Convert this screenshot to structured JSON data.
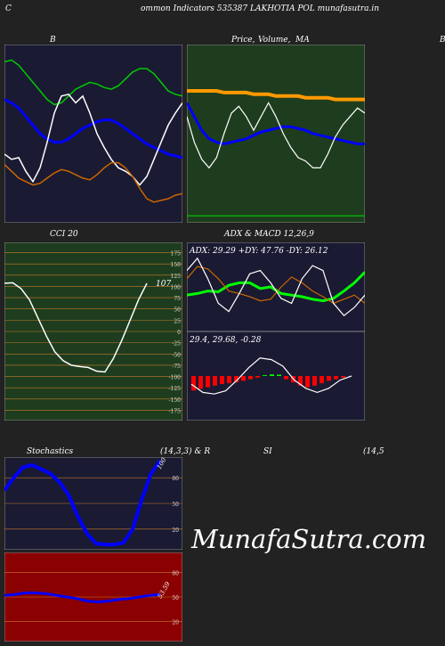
{
  "header": {
    "left_letter": "C",
    "title": "ommon  Indicators 535387 LAKHOTIA POL  munafasutra.in",
    "right_letter": "B"
  },
  "panels": {
    "bb": {
      "title": "B"
    },
    "price": {
      "title_a": "Price,",
      "title_b": "Volume,",
      "title_c": "MA"
    },
    "cci": {
      "title": "CCI 20",
      "ticks": [
        "175",
        "150",
        "125",
        "100",
        "75",
        "50",
        "25",
        "0",
        "-25",
        "-50",
        "-75",
        "-100",
        "-125",
        "-150",
        "-175"
      ],
      "value_label": "107"
    },
    "adx": {
      "title": "ADX  & MACD 12,26,9",
      "readout": "ADX: 29.29  +DY: 47.76  -DY: 26.12"
    },
    "macd": {
      "readout": "29.4,  29.68,  -0.28"
    },
    "stoch": {
      "title_a": "Stochastics",
      "title_b": "(14,3,3) & R",
      "title_c": "SI",
      "title_d": "(14,5",
      "ticks": [
        "80",
        "50",
        "20"
      ],
      "value_label": "100"
    },
    "rsi": {
      "ticks": [
        "80",
        "50",
        "20"
      ],
      "value_label": "53.59"
    }
  },
  "watermark": "MunafaSutra.com",
  "colors": {
    "bg": "#222222",
    "navy": "#1a1a33",
    "green": "#1e3d1e",
    "red": "#8b0000",
    "grid": "#c87a2a"
  },
  "chart_data": [
    {
      "type": "line",
      "name_hint": "B panel",
      "series": [
        {
          "color": "#00cc00",
          "values": [
            0.92,
            0.93,
            0.9,
            0.85,
            0.8,
            0.75,
            0.7,
            0.67,
            0.68,
            0.72,
            0.76,
            0.78,
            0.8,
            0.79,
            0.77,
            0.76,
            0.78,
            0.82,
            0.86,
            0.88,
            0.88,
            0.85,
            0.8,
            0.75,
            0.73,
            0.72
          ]
        },
        {
          "color": "#0000ff",
          "values": [
            0.7,
            0.68,
            0.65,
            0.6,
            0.55,
            0.5,
            0.47,
            0.45,
            0.45,
            0.47,
            0.5,
            0.53,
            0.55,
            0.57,
            0.58,
            0.58,
            0.56,
            0.53,
            0.5,
            0.47,
            0.44,
            0.42,
            0.4,
            0.38,
            0.37,
            0.36
          ]
        },
        {
          "color": "#ffffff",
          "values": [
            0.38,
            0.35,
            0.36,
            0.28,
            0.22,
            0.3,
            0.45,
            0.62,
            0.72,
            0.73,
            0.68,
            0.72,
            0.62,
            0.5,
            0.42,
            0.35,
            0.3,
            0.28,
            0.25,
            0.2,
            0.25,
            0.35,
            0.45,
            0.55,
            0.62,
            0.68
          ]
        },
        {
          "color": "#cc6600",
          "values": [
            0.32,
            0.28,
            0.24,
            0.22,
            0.2,
            0.21,
            0.24,
            0.27,
            0.29,
            0.28,
            0.26,
            0.24,
            0.23,
            0.26,
            0.3,
            0.33,
            0.33,
            0.3,
            0.25,
            0.18,
            0.12,
            0.1,
            0.11,
            0.12,
            0.14,
            0.15
          ]
        }
      ]
    },
    {
      "type": "line",
      "name_hint": "Price panel",
      "series": [
        {
          "color": "#ff9900",
          "values": [
            0.75,
            0.75,
            0.75,
            0.75,
            0.75,
            0.74,
            0.74,
            0.74,
            0.74,
            0.73,
            0.73,
            0.73,
            0.72,
            0.72,
            0.72,
            0.72,
            0.71,
            0.71,
            0.71,
            0.71,
            0.7,
            0.7,
            0.7,
            0.7,
            0.7
          ]
        },
        {
          "color": "#0000ff",
          "values": [
            0.68,
            0.6,
            0.52,
            0.47,
            0.45,
            0.44,
            0.45,
            0.46,
            0.47,
            0.49,
            0.51,
            0.52,
            0.53,
            0.54,
            0.54,
            0.53,
            0.52,
            0.5,
            0.49,
            0.48,
            0.47,
            0.46,
            0.45,
            0.44,
            0.44
          ]
        },
        {
          "color": "#ffffff",
          "values": [
            0.6,
            0.45,
            0.35,
            0.3,
            0.36,
            0.5,
            0.62,
            0.66,
            0.6,
            0.52,
            0.6,
            0.68,
            0.6,
            0.5,
            0.42,
            0.36,
            0.34,
            0.3,
            0.3,
            0.38,
            0.48,
            0.55,
            0.6,
            0.65,
            0.62
          ]
        },
        {
          "color": "#00cc00",
          "values": [
            0.02,
            0.02,
            0.02,
            0.02,
            0.02,
            0.02,
            0.02,
            0.02,
            0.02,
            0.02,
            0.02,
            0.02,
            0.02,
            0.02,
            0.02,
            0.02,
            0.02,
            0.02,
            0.02,
            0.02,
            0.02,
            0.02,
            0.02,
            0.02,
            0.02
          ]
        }
      ]
    },
    {
      "type": "line",
      "name_hint": "CCI 20",
      "ylim": [
        -190,
        190
      ],
      "series": [
        {
          "color": "#ffffff",
          "values": [
            107,
            108,
            95,
            70,
            30,
            -10,
            -45,
            -65,
            -75,
            -78,
            -80,
            -88,
            -90,
            -60,
            -20,
            25,
            70,
            107
          ]
        }
      ]
    },
    {
      "type": "line",
      "name_hint": "ADX",
      "series": [
        {
          "color": "#00ff00",
          "values": [
            0.4,
            0.42,
            0.45,
            0.44,
            0.52,
            0.55,
            0.55,
            0.48,
            0.5,
            0.42,
            0.4,
            0.38,
            0.35,
            0.33,
            0.36,
            0.45,
            0.55,
            0.68
          ]
        },
        {
          "color": "#cc6600",
          "values": [
            0.6,
            0.75,
            0.72,
            0.6,
            0.45,
            0.42,
            0.38,
            0.33,
            0.35,
            0.5,
            0.62,
            0.55,
            0.45,
            0.38,
            0.3,
            0.35,
            0.4,
            0.3
          ]
        },
        {
          "color": "#ffffff",
          "values": [
            0.7,
            0.85,
            0.6,
            0.3,
            0.2,
            0.42,
            0.66,
            0.7,
            0.55,
            0.36,
            0.3,
            0.6,
            0.76,
            0.7,
            0.3,
            0.15,
            0.25,
            0.4
          ]
        }
      ]
    },
    {
      "type": "bar",
      "name_hint": "MACD histogram",
      "values": [
        -0.9,
        -0.8,
        -0.7,
        -0.6,
        -0.5,
        -0.45,
        -0.4,
        -0.3,
        -0.2,
        -0.1,
        0.05,
        0.1,
        0.08,
        -0.2,
        -0.4,
        -0.6,
        -0.7,
        -0.6,
        -0.45,
        -0.3,
        -0.2,
        -0.1
      ]
    },
    {
      "type": "line",
      "name_hint": "Stochastics",
      "ylim": [
        0,
        100
      ],
      "series": [
        {
          "color": "#0000ff",
          "values": [
            65,
            80,
            92,
            95,
            90,
            85,
            75,
            60,
            35,
            15,
            3,
            2,
            2,
            4,
            20,
            55,
            85,
            100
          ]
        }
      ]
    },
    {
      "type": "line",
      "name_hint": "RSI",
      "ylim": [
        0,
        100
      ],
      "series": [
        {
          "color": "#0000ff",
          "values": [
            52,
            53,
            55,
            55,
            54,
            52,
            50,
            48,
            45,
            44,
            45,
            47,
            48,
            50,
            52,
            53
          ]
        }
      ]
    }
  ]
}
